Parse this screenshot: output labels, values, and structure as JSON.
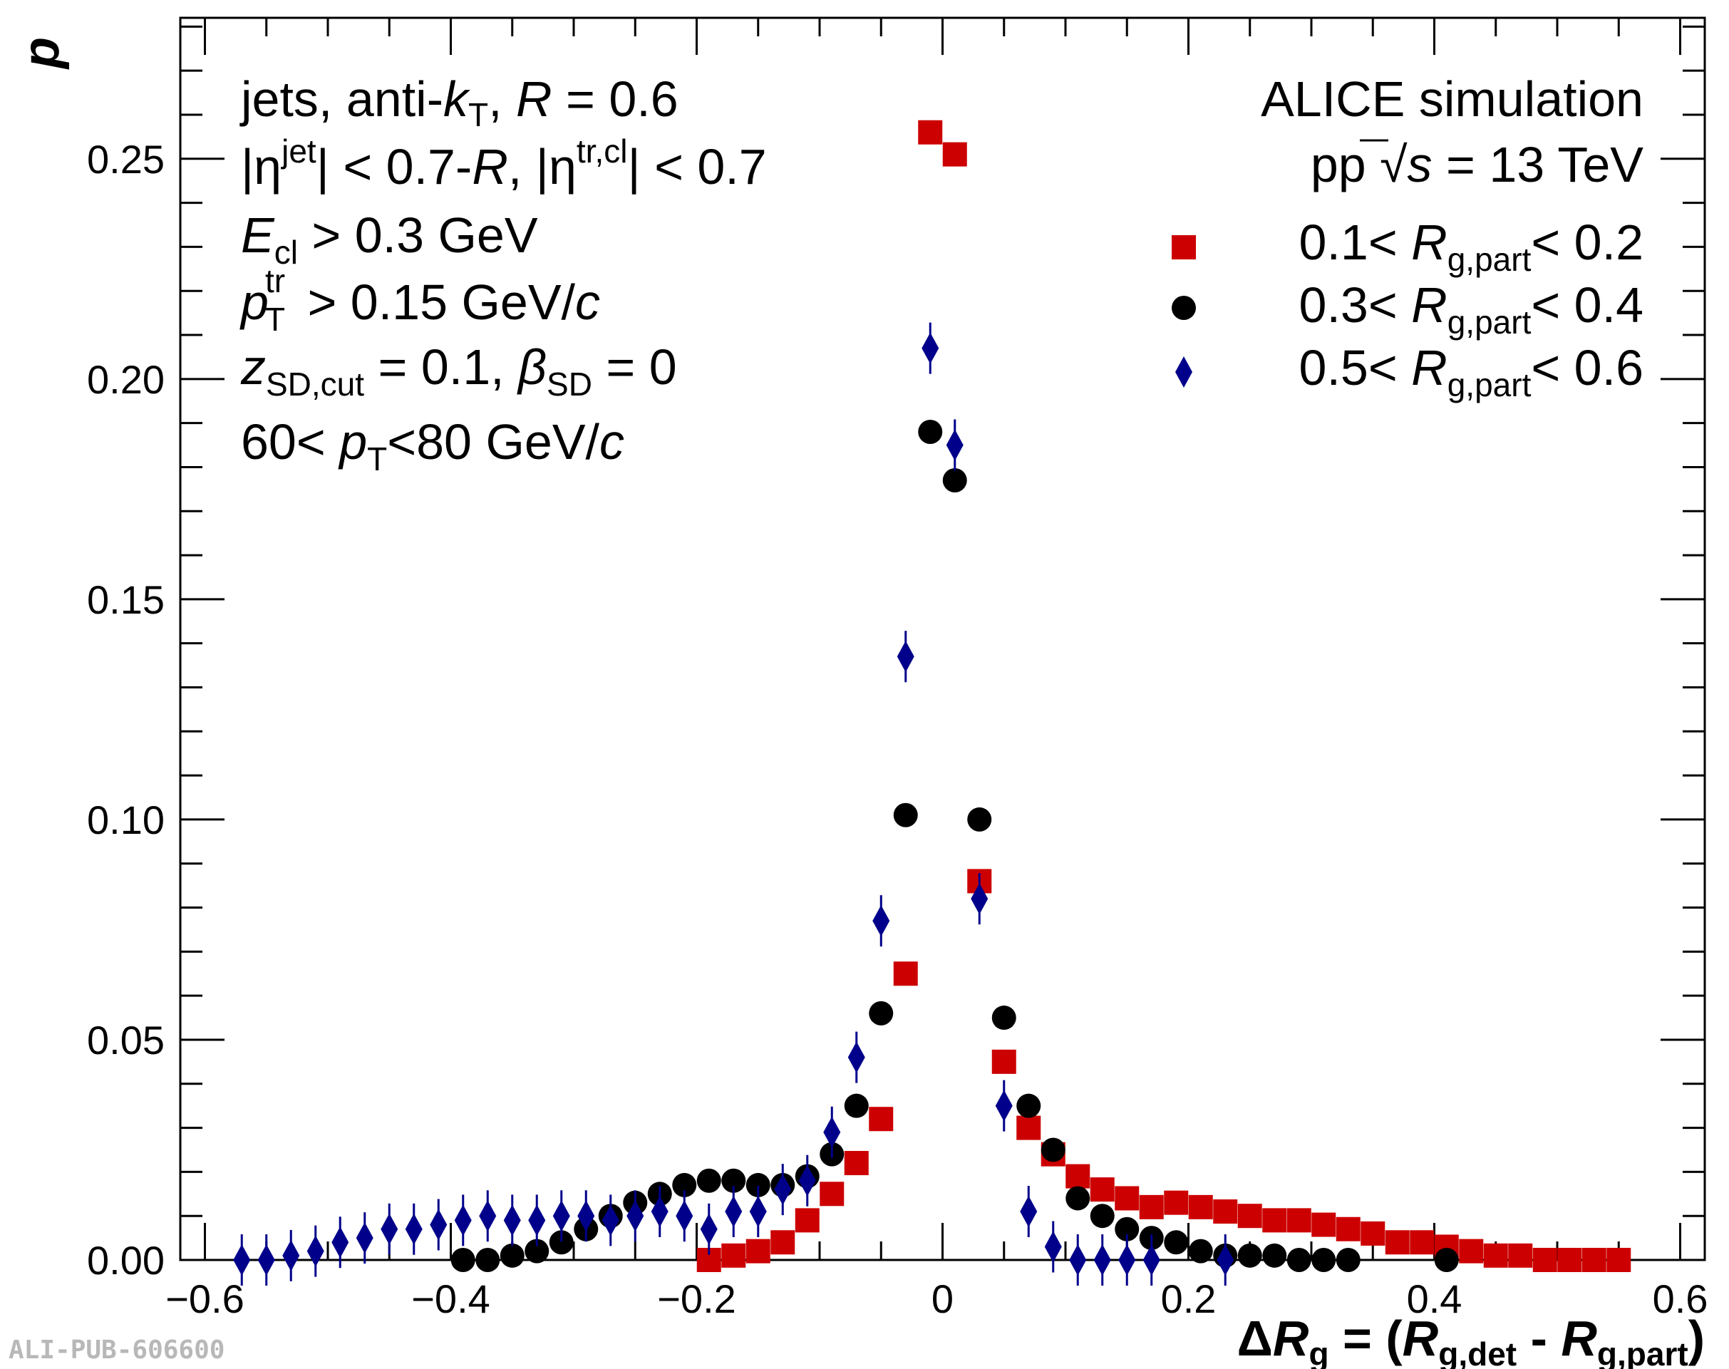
{
  "chart_data": {
    "type": "scatter",
    "ylabel": "p",
    "xlabel": {
      "delta": "Δ",
      "r": "R",
      "g": "g",
      "eq": " = (",
      "r1": "R",
      "sub1": "g,det",
      "minus": " -  ",
      "r2": "R",
      "sub2": "g,part",
      "close": ")"
    },
    "xlim": [
      -0.62,
      0.62
    ],
    "ylim": [
      0,
      0.282
    ],
    "x_ticks": [
      -0.6,
      -0.4,
      -0.2,
      0,
      0.2,
      0.4,
      0.6
    ],
    "x_tick_labels": [
      "−0.6",
      "−0.4",
      "−0.2",
      "0",
      "0.2",
      "0.4",
      "0.6"
    ],
    "y_ticks": [
      0,
      0.05,
      0.1,
      0.15,
      0.2,
      0.25
    ],
    "y_tick_labels": [
      "0.00",
      "0.05",
      "0.10",
      "0.15",
      "0.20",
      "0.25"
    ],
    "grid": false,
    "legend_position": "top-right",
    "annotations_left": {
      "l1": {
        "a": "jets, anti-",
        "k": "k",
        "ksub": "T",
        "b": ", ",
        "R": "R",
        "c": " = 0.6"
      },
      "l2": {
        "a": "|η",
        "asup": "jet",
        "b": "| < 0.7-",
        "R": "R",
        "c": ", |η",
        "csup": "tr,cl",
        "d": "| < 0.7"
      },
      "l3": {
        "E": "E",
        "Esub": "cl",
        "b": " > 0.3 GeV"
      },
      "l4": {
        "p": "p",
        "psup": "tr",
        "psub": "T",
        "b": " > 0.15 GeV/",
        "c": "c"
      },
      "l5": {
        "z": "z",
        "zsub": "SD,cut",
        "b": " = 0.1, ",
        "beta": "β",
        "betasub": "SD",
        "c": " = 0"
      },
      "l6": {
        "a": "60< ",
        "p": "p",
        "psub": "T",
        "b": "<80 GeV/",
        "c": "c"
      }
    },
    "annotations_right": {
      "l1": "ALICE simulation",
      "l2": {
        "a": "pp  ",
        "sqrt": "√",
        "s": "s",
        "b": " = 13 TeV"
      }
    },
    "watermark": "ALI-PUB-606600",
    "series": [
      {
        "name": "0.1< Rg,part< 0.2",
        "legend": {
          "a": "0.1< ",
          "R": "R",
          "sub": "g,part",
          "b": "< 0.2"
        },
        "marker": "square",
        "color": "#cc0000",
        "x": [
          -0.19,
          -0.17,
          -0.15,
          -0.13,
          -0.11,
          -0.09,
          -0.07,
          -0.05,
          -0.03,
          -0.01,
          0.01,
          0.03,
          0.05,
          0.07,
          0.09,
          0.11,
          0.13,
          0.15,
          0.17,
          0.19,
          0.21,
          0.23,
          0.25,
          0.27,
          0.29,
          0.31,
          0.33,
          0.35,
          0.37,
          0.39,
          0.41,
          0.43,
          0.45,
          0.47,
          0.49,
          0.51,
          0.53,
          0.55
        ],
        "y": [
          0.0,
          0.001,
          0.002,
          0.004,
          0.009,
          0.015,
          0.022,
          0.032,
          0.065,
          0.256,
          0.251,
          0.086,
          0.045,
          0.03,
          0.024,
          0.019,
          0.016,
          0.014,
          0.012,
          0.013,
          0.012,
          0.011,
          0.01,
          0.009,
          0.009,
          0.008,
          0.007,
          0.006,
          0.004,
          0.004,
          0.003,
          0.002,
          0.001,
          0.001,
          0.0,
          0.0,
          0.0,
          0.0
        ]
      },
      {
        "name": "0.3< Rg,part< 0.4",
        "legend": {
          "a": "0.3< ",
          "R": "R",
          "sub": "g,part",
          "b": "< 0.4"
        },
        "marker": "circle",
        "color": "#000000",
        "x": [
          -0.39,
          -0.37,
          -0.35,
          -0.33,
          -0.31,
          -0.29,
          -0.27,
          -0.25,
          -0.23,
          -0.21,
          -0.19,
          -0.17,
          -0.15,
          -0.13,
          -0.11,
          -0.09,
          -0.07,
          -0.05,
          -0.03,
          -0.01,
          0.01,
          0.03,
          0.05,
          0.07,
          0.09,
          0.11,
          0.13,
          0.15,
          0.17,
          0.19,
          0.21,
          0.23,
          0.25,
          0.27,
          0.29,
          0.31,
          0.33,
          0.41
        ],
        "y": [
          0.0,
          0.0,
          0.001,
          0.002,
          0.004,
          0.007,
          0.01,
          0.013,
          0.015,
          0.017,
          0.018,
          0.018,
          0.017,
          0.017,
          0.019,
          0.024,
          0.035,
          0.056,
          0.101,
          0.188,
          0.177,
          0.1,
          0.055,
          0.035,
          0.025,
          0.014,
          0.01,
          0.007,
          0.005,
          0.004,
          0.002,
          0.001,
          0.001,
          0.001,
          0.0,
          0.0,
          0.0,
          0.0
        ]
      },
      {
        "name": "0.5< Rg,part< 0.6",
        "legend": {
          "a": "0.5< ",
          "R": "R",
          "sub": "g,part",
          "b": "< 0.6"
        },
        "marker": "diamond",
        "color": "#00008b",
        "x": [
          -0.57,
          -0.55,
          -0.53,
          -0.51,
          -0.49,
          -0.47,
          -0.45,
          -0.43,
          -0.41,
          -0.39,
          -0.37,
          -0.35,
          -0.33,
          -0.31,
          -0.29,
          -0.27,
          -0.25,
          -0.23,
          -0.21,
          -0.19,
          -0.17,
          -0.15,
          -0.13,
          -0.11,
          -0.09,
          -0.07,
          -0.05,
          -0.03,
          -0.01,
          0.01,
          0.03,
          0.05,
          0.07,
          0.09,
          0.11,
          0.13,
          0.15,
          0.17,
          0.23
        ],
        "y": [
          0.0,
          0.0,
          0.001,
          0.002,
          0.004,
          0.005,
          0.007,
          0.007,
          0.008,
          0.009,
          0.01,
          0.009,
          0.009,
          0.01,
          0.01,
          0.009,
          0.01,
          0.011,
          0.01,
          0.007,
          0.011,
          0.011,
          0.016,
          0.018,
          0.029,
          0.046,
          0.077,
          0.137,
          0.207,
          0.185,
          0.082,
          0.035,
          0.011,
          0.003,
          0.0,
          0.0,
          0.0,
          0.0,
          0.0
        ]
      }
    ]
  }
}
